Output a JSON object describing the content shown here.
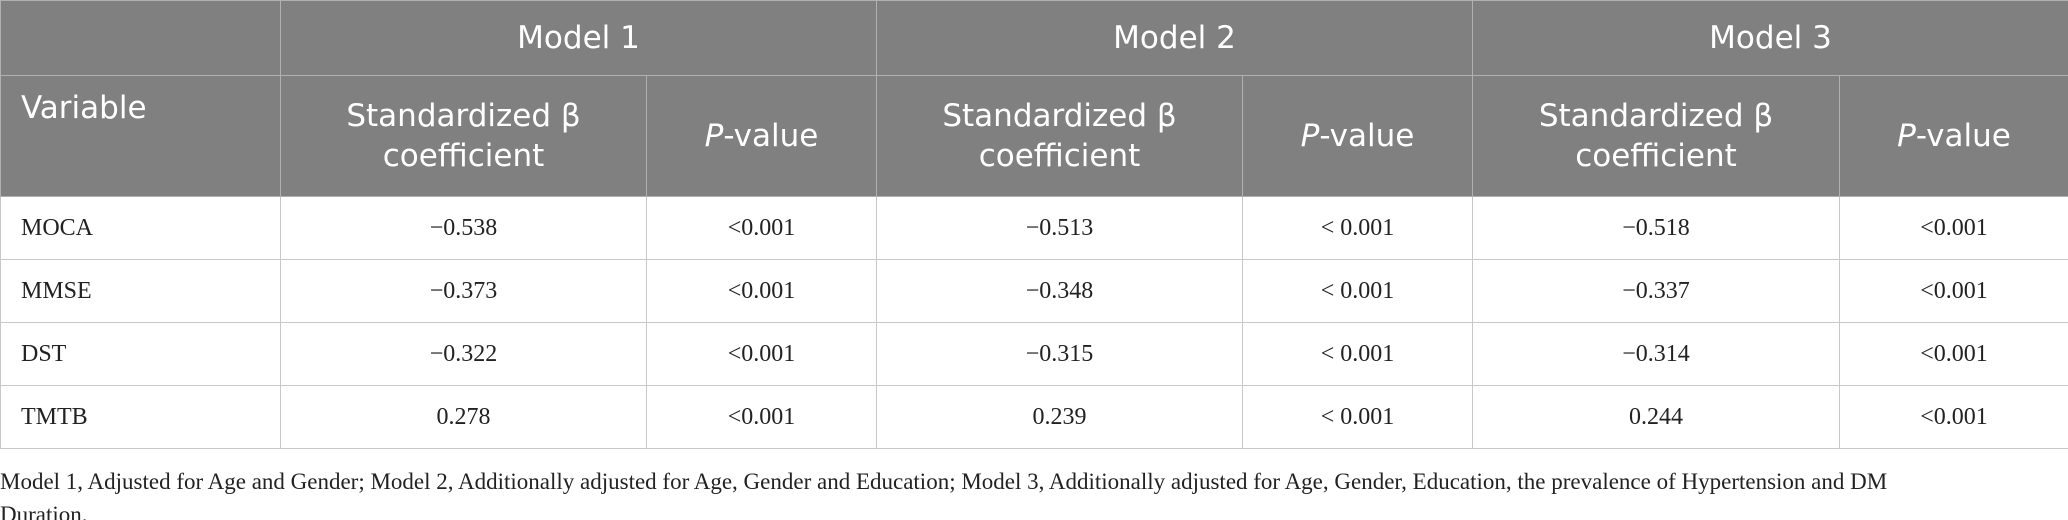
{
  "table": {
    "model_headers": [
      "Model 1",
      "Model 2",
      "Model 3"
    ],
    "columns": [
      "Variable",
      "Standardized β coefficient",
      {
        "italic": "P",
        "rest": "-value"
      },
      "Standardized β coefficient",
      {
        "italic": "P",
        "rest": "-value"
      },
      "Standardized β coefficient",
      {
        "italic": "P",
        "rest": "-value"
      }
    ],
    "rows": [
      [
        "MOCA",
        "−0.538",
        "<0.001",
        "−0.513",
        "< 0.001",
        "−0.518",
        "<0.001"
      ],
      [
        "MMSE",
        "−0.373",
        "<0.001",
        "−0.348",
        "< 0.001",
        "−0.337",
        "<0.001"
      ],
      [
        "DST",
        "−0.322",
        "<0.001",
        "−0.315",
        "< 0.001",
        "−0.314",
        "<0.001"
      ],
      [
        "TMTB",
        "0.278",
        "<0.001",
        "0.239",
        "< 0.001",
        "0.244",
        "<0.001"
      ]
    ],
    "footnote": "Model 1, Adjusted for Age and Gender; Model 2, Additionally adjusted for Age, Gender and Education; Model 3, Additionally adjusted for Age, Gender, Education, the prevalence of Hypertension and DM Duration."
  }
}
